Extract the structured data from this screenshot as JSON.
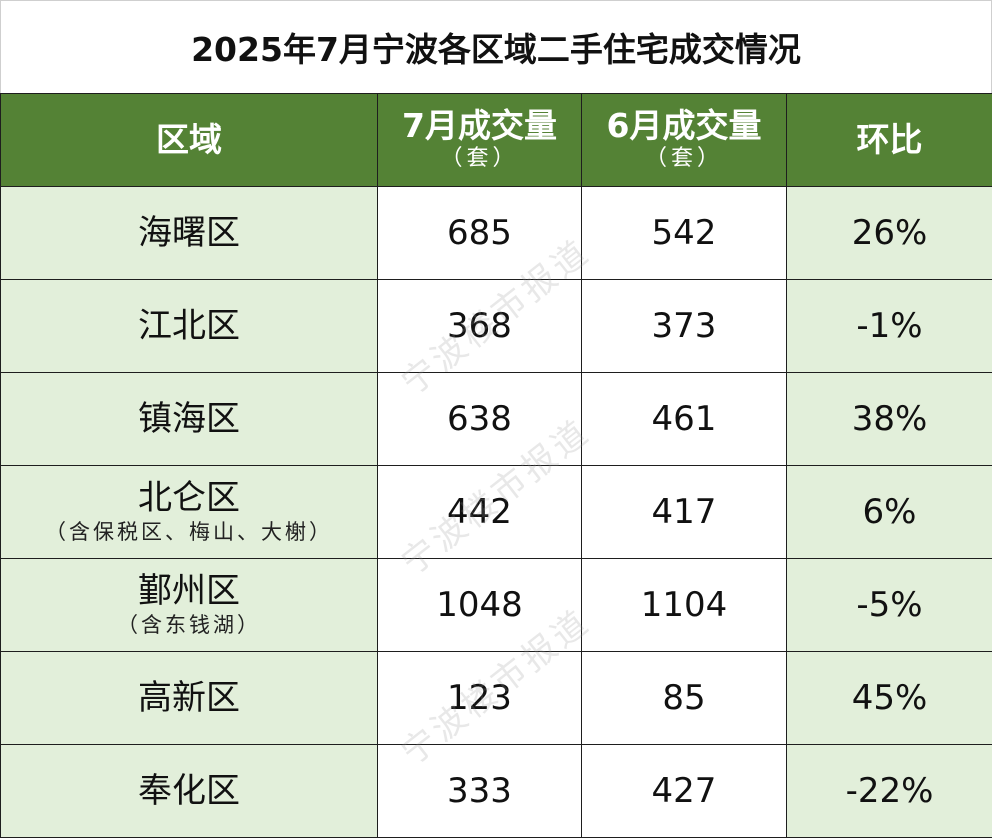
{
  "title": "2025年7月宁波各区域二手住宅成交情况",
  "headers": {
    "region": "区域",
    "july": "7月成交量",
    "july_unit": "（套）",
    "june": "6月成交量",
    "june_unit": "（套）",
    "ratio": "环比"
  },
  "colors": {
    "header_bg": "#548235",
    "row_tint": "#e2efda",
    "increase": "#c00000",
    "decrease": "#548235"
  },
  "rows": [
    {
      "region": "海曙区",
      "note": "",
      "july": "685",
      "june": "542",
      "ratio": "26%",
      "trend": "up"
    },
    {
      "region": "江北区",
      "note": "",
      "july": "368",
      "june": "373",
      "ratio": "-1%",
      "trend": "down"
    },
    {
      "region": "镇海区",
      "note": "",
      "july": "638",
      "june": "461",
      "ratio": "38%",
      "trend": "up"
    },
    {
      "region": "北仑区",
      "note": "（含保税区、梅山、大榭）",
      "july": "442",
      "june": "417",
      "ratio": "6%",
      "trend": "up"
    },
    {
      "region": "鄞州区",
      "note": "（含东钱湖）",
      "july": "1048",
      "june": "1104",
      "ratio": "-5%",
      "trend": "down"
    },
    {
      "region": "高新区",
      "note": "",
      "july": "123",
      "june": "85",
      "ratio": "45%",
      "trend": "up"
    },
    {
      "region": "奉化区",
      "note": "",
      "july": "333",
      "june": "427",
      "ratio": "-22%",
      "trend": "down"
    }
  ],
  "watermark": "宁波楼市报道"
}
